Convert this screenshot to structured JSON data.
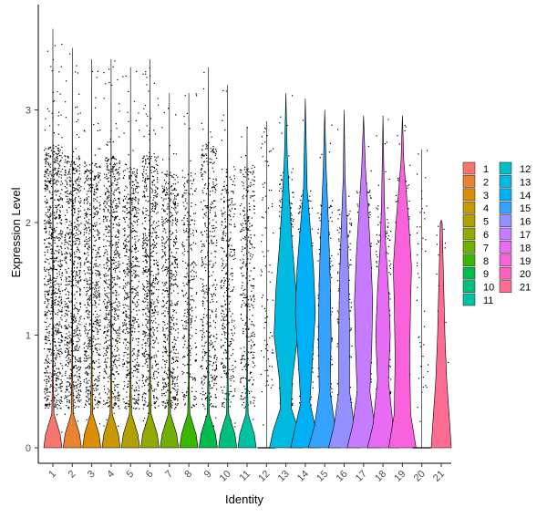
{
  "chart_data": {
    "type": "violin",
    "xlabel": "Identity",
    "ylabel": "Expression Level",
    "ylim": [
      -0.15,
      3.75
    ],
    "yticks": [
      0,
      1,
      2,
      3
    ],
    "categories": [
      "1",
      "2",
      "3",
      "4",
      "5",
      "6",
      "7",
      "8",
      "9",
      "10",
      "11",
      "12",
      "13",
      "14",
      "15",
      "16",
      "17",
      "18",
      "19",
      "20",
      "21"
    ],
    "colors": [
      "#F8766D",
      "#EA8331",
      "#DB8E00",
      "#C79800",
      "#B0A100",
      "#94A900",
      "#70B000",
      "#39B600",
      "#00BB4E",
      "#00BF7D",
      "#00C1A3",
      "#00BFC4",
      "#00BAE0",
      "#00B0F6",
      "#35A2FF",
      "#9590FF",
      "#C77CFF",
      "#E76BF3",
      "#FA62DB",
      "#FF62BC",
      "#FF6C91"
    ],
    "max_expression": [
      3.72,
      3.55,
      3.45,
      3.45,
      3.38,
      3.45,
      3.15,
      3.15,
      3.38,
      3.22,
      2.85,
      2.9,
      3.15,
      3.1,
      3.0,
      3.0,
      2.95,
      2.95,
      2.95,
      2.65,
      2.02
    ],
    "dense_upper": [
      2.7,
      2.6,
      2.55,
      2.6,
      2.5,
      2.6,
      2.45,
      2.5,
      2.7,
      2.5,
      2.5,
      2.1,
      2.45,
      2.3,
      2.2,
      2.15,
      2.3,
      2.2,
      2.4,
      2.0,
      2.0
    ],
    "legend": {
      "position": "right",
      "columns": 2
    },
    "grid": false
  }
}
